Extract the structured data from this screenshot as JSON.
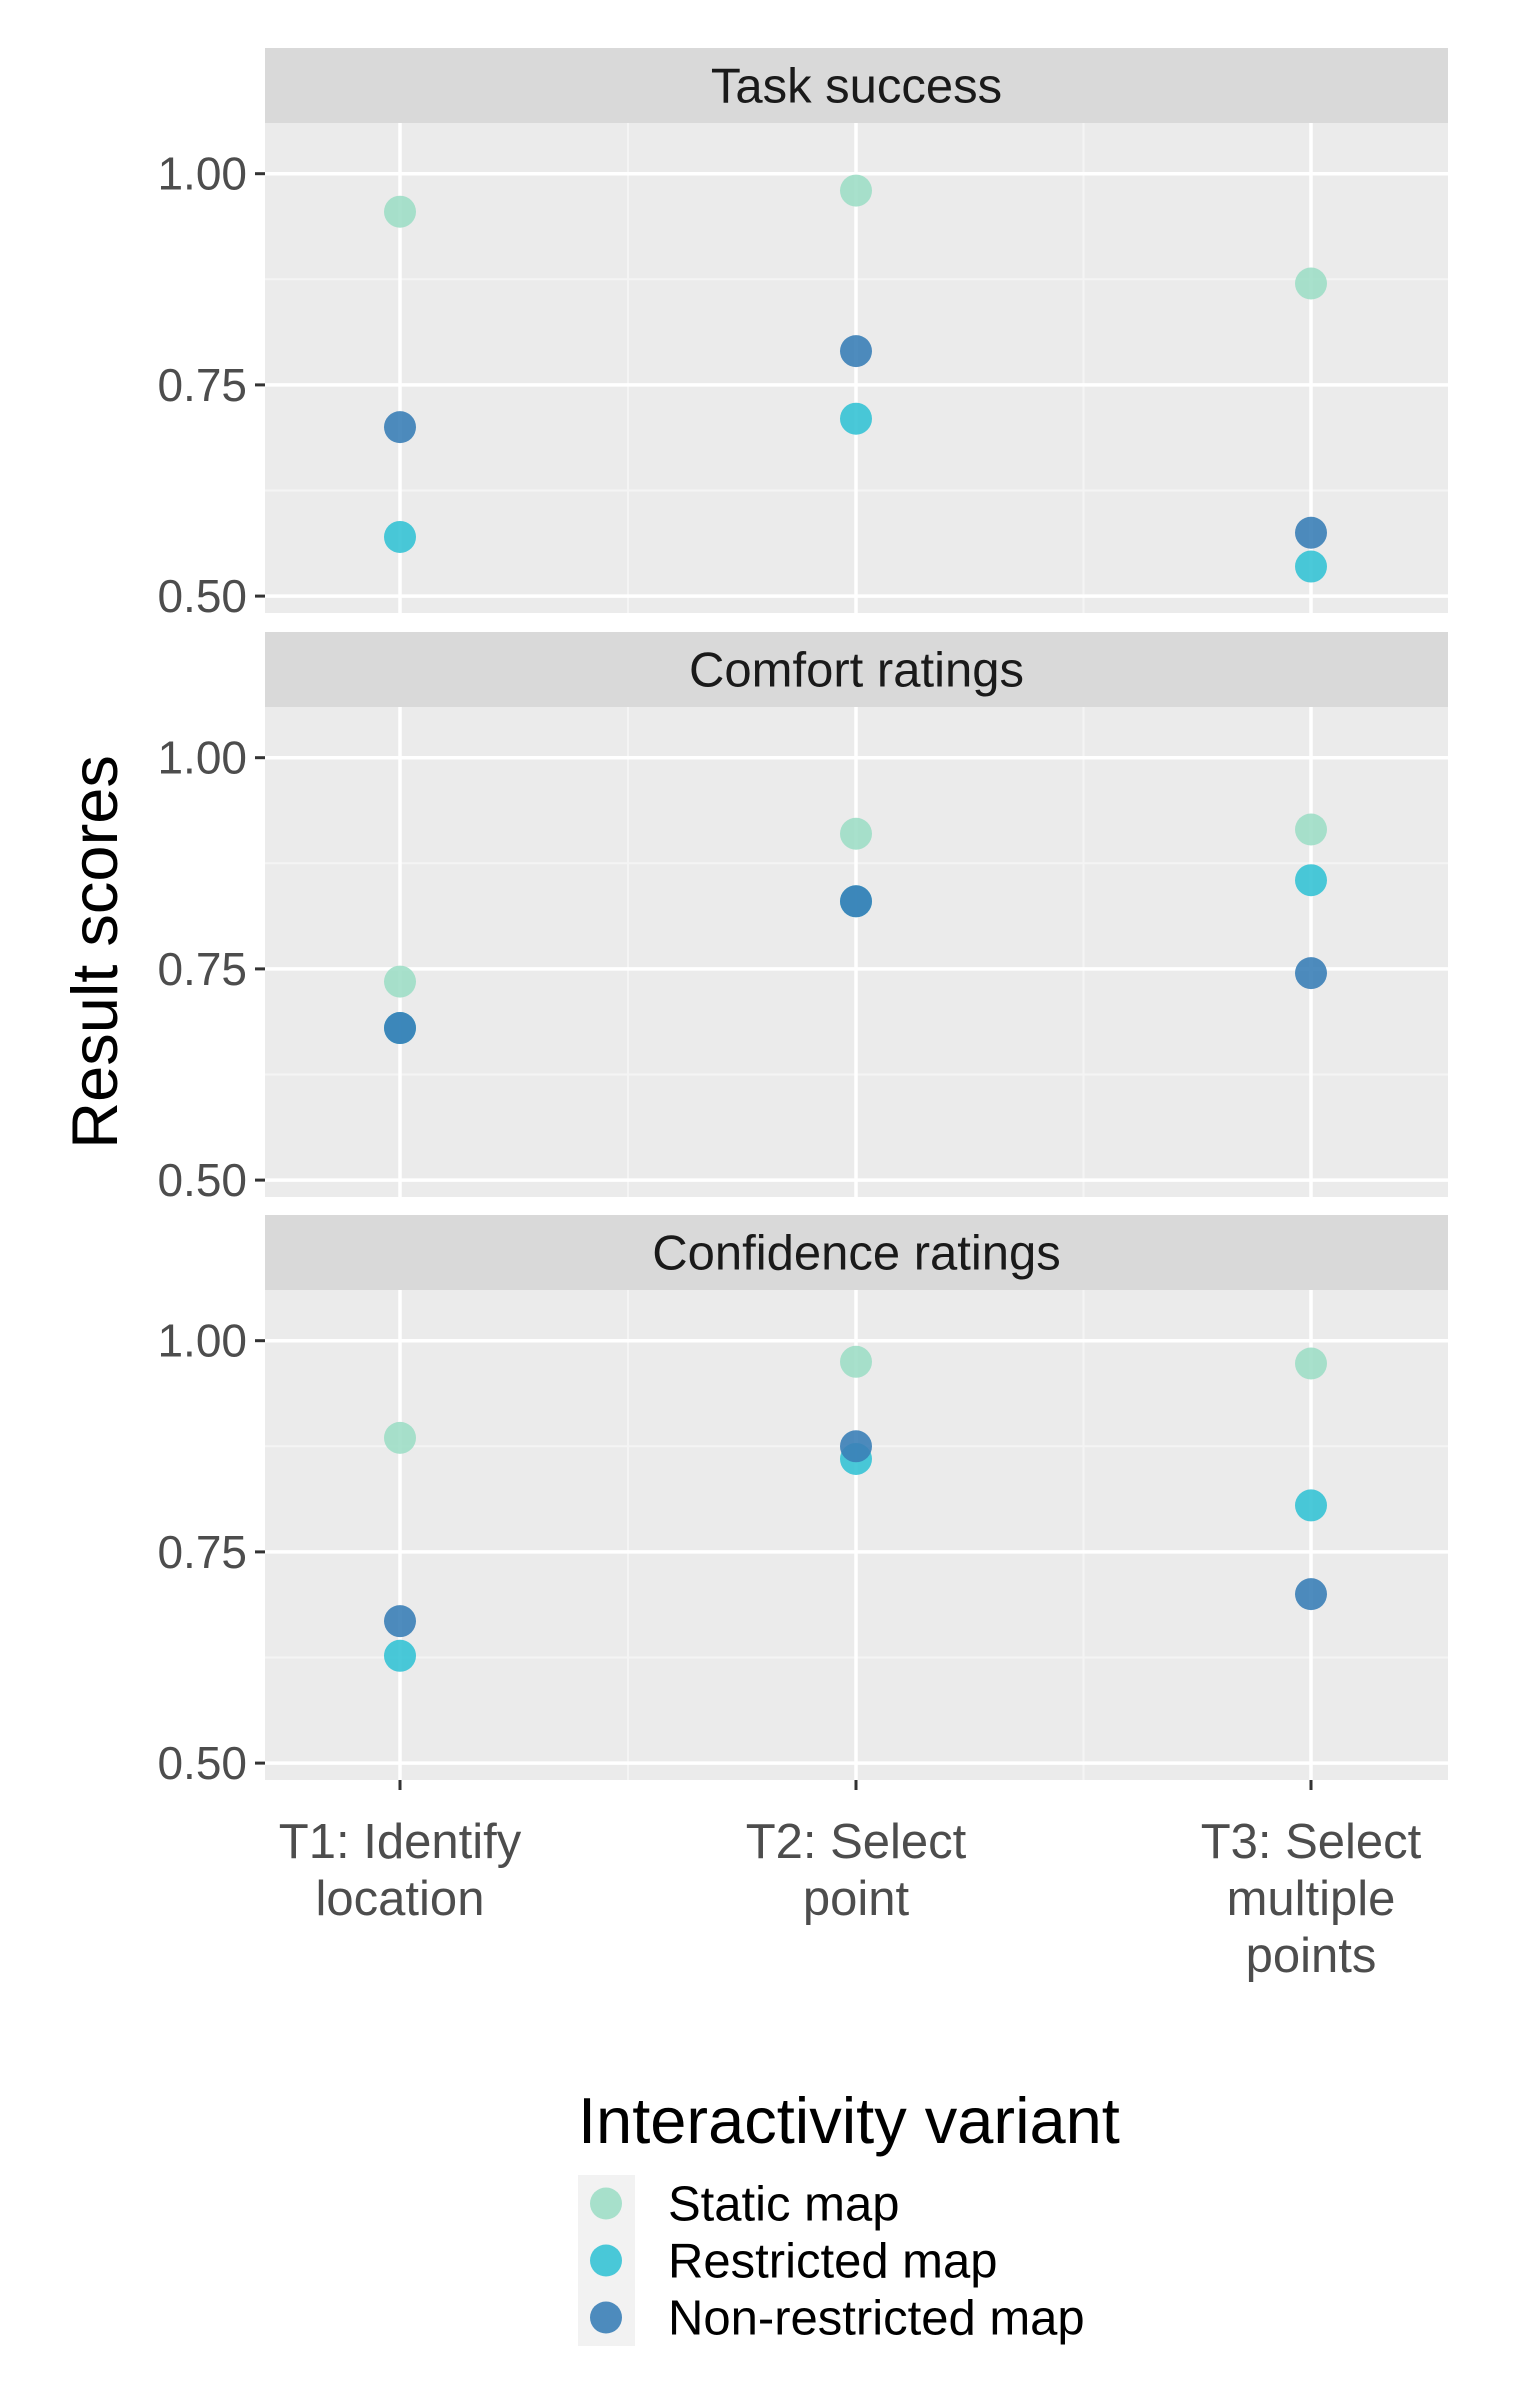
{
  "chart_data": {
    "type": "scatter",
    "ylabel": "Result scores",
    "xlabel": "",
    "categories": [
      [
        "T1: Identify",
        "location"
      ],
      [
        "T2: Select",
        "point"
      ],
      [
        "T3: Select",
        "multiple",
        "points"
      ]
    ],
    "ylim": [
      0.48,
      1.06
    ],
    "yticks": [
      0.5,
      0.75,
      1.0
    ],
    "ytick_labels": [
      "0.50",
      "0.75",
      "1.00"
    ],
    "grid": true,
    "legend": {
      "title": "Interactivity variant",
      "position": "bottom",
      "entries": [
        "Static map",
        "Restricted map",
        "Non-restricted map"
      ]
    },
    "series_colors": {
      "Static map": "#9fdec6",
      "Restricted map": "#36c3d5",
      "Non-restricted map": "#3b7fb7"
    },
    "panels": [
      {
        "title": "Task success",
        "series": [
          {
            "name": "Static map",
            "values": [
              0.955,
              0.98,
              0.87
            ]
          },
          {
            "name": "Restricted map",
            "values": [
              0.57,
              0.71,
              0.535
            ]
          },
          {
            "name": "Non-restricted map",
            "values": [
              0.7,
              0.79,
              0.575
            ]
          }
        ]
      },
      {
        "title": "Comfort ratings",
        "series": [
          {
            "name": "Static map",
            "values": [
              0.735,
              0.91,
              0.915
            ]
          },
          {
            "name": "Restricted map",
            "values": [
              0.68,
              0.83,
              0.855
            ]
          },
          {
            "name": "Non-restricted map",
            "values": [
              0.68,
              0.83,
              0.745
            ]
          }
        ]
      },
      {
        "title": "Confidence ratings",
        "series": [
          {
            "name": "Static map",
            "values": [
              0.885,
              0.975,
              0.973
            ]
          },
          {
            "name": "Restricted map",
            "values": [
              0.627,
              0.86,
              0.805
            ]
          },
          {
            "name": "Non-restricted map",
            "values": [
              0.668,
              0.875,
              0.7
            ]
          }
        ]
      }
    ]
  },
  "colors": {
    "panel_bg": "#ebebeb",
    "strip_bg": "#d9d9d9",
    "grid_major": "#ffffff",
    "grid_minor": "#f4f4f4"
  }
}
